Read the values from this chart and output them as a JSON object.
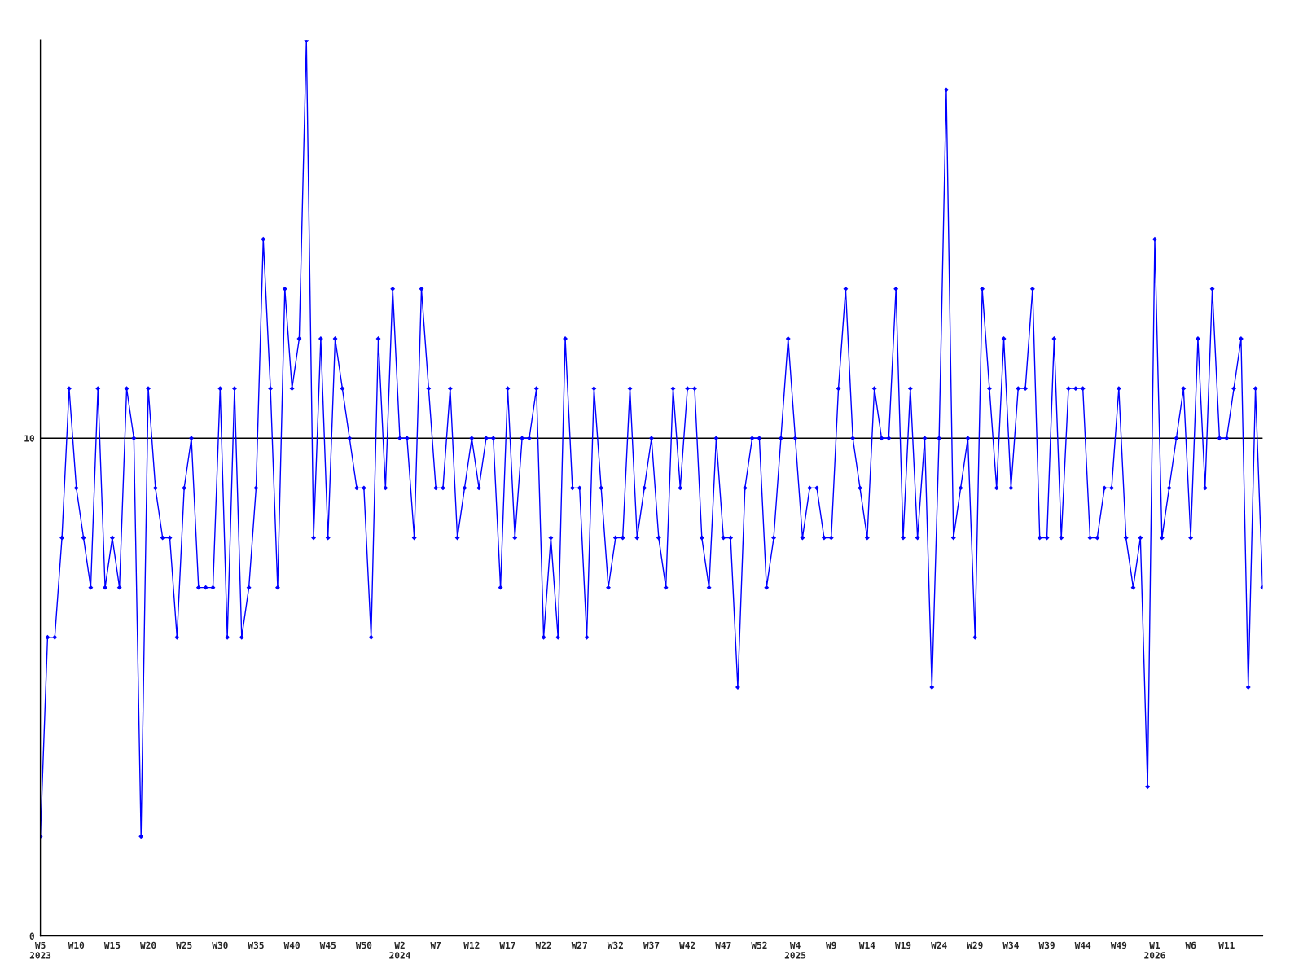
{
  "chart_data": {
    "type": "line",
    "categories": [
      "W5\n2023",
      null,
      null,
      null,
      null,
      "W10",
      null,
      null,
      null,
      null,
      "W15",
      null,
      null,
      null,
      null,
      "W20",
      null,
      null,
      null,
      null,
      "W25",
      null,
      null,
      null,
      null,
      "W30",
      null,
      null,
      null,
      null,
      "W35",
      null,
      null,
      null,
      null,
      "W40",
      null,
      null,
      null,
      null,
      "W45",
      null,
      null,
      null,
      null,
      "W50",
      null,
      null,
      null,
      null,
      "W2\n2024",
      null,
      null,
      null,
      null,
      "W7",
      null,
      null,
      null,
      null,
      "W12",
      null,
      null,
      null,
      null,
      "W17",
      null,
      null,
      null,
      null,
      "W22",
      null,
      null,
      null,
      null,
      "W27",
      null,
      null,
      null,
      null,
      "W32",
      null,
      null,
      null,
      null,
      "W37",
      null,
      null,
      null,
      null,
      "W42",
      null,
      null,
      null,
      null,
      "W47",
      null,
      null,
      null,
      null,
      "W52",
      null,
      null,
      null,
      null,
      "W4\n2025",
      null,
      null,
      null,
      null,
      "W9",
      null,
      null,
      null,
      null,
      "W14",
      null,
      null,
      null,
      null,
      "W19",
      null,
      null,
      null,
      null,
      "W24",
      null,
      null,
      null,
      null,
      "W29",
      null,
      null,
      null,
      null,
      "W34",
      null,
      null,
      null,
      null,
      "W39",
      null,
      null,
      null,
      null,
      "W44",
      null,
      null,
      null,
      null,
      "W49",
      null,
      null,
      null,
      null,
      "W1\n2026",
      null,
      null,
      null,
      null,
      "W6",
      null,
      null,
      null,
      null,
      "W11",
      null,
      null,
      null,
      null,
      null
    ],
    "series": [
      {
        "color": "#0000ff",
        "values": [
          2,
          6,
          6,
          8,
          11,
          9,
          8,
          7,
          11,
          7,
          8,
          7,
          11,
          10,
          2,
          11,
          9,
          8,
          8,
          6,
          9,
          10,
          7,
          7,
          7,
          11,
          6,
          11,
          6,
          7,
          9,
          14,
          11,
          7,
          13,
          11,
          12,
          18,
          8,
          12,
          8,
          12,
          11,
          10,
          9,
          9,
          6,
          12,
          9,
          13,
          10,
          10,
          8,
          13,
          11,
          9,
          9,
          11,
          8,
          9,
          10,
          9,
          10,
          10,
          7,
          11,
          8,
          10,
          10,
          11,
          6,
          8,
          6,
          12,
          9,
          9,
          6,
          11,
          9,
          7,
          8,
          8,
          11,
          8,
          9,
          10,
          8,
          7,
          11,
          9,
          11,
          11,
          8,
          7,
          10,
          8,
          8,
          5,
          9,
          10,
          10,
          7,
          8,
          10,
          12,
          10,
          8,
          9,
          9,
          8,
          8,
          11,
          13,
          10,
          9,
          8,
          11,
          10,
          10,
          13,
          8,
          11,
          8,
          10,
          5,
          10,
          17,
          8,
          9,
          10,
          6,
          13,
          11,
          9,
          12,
          9,
          11,
          11,
          13,
          8,
          8,
          12,
          8,
          11,
          11,
          11,
          8,
          8,
          9,
          9,
          11,
          8,
          7,
          8,
          3,
          14,
          8,
          9,
          10,
          11,
          8,
          12,
          9,
          13,
          10,
          10,
          11,
          12,
          5,
          11,
          7
        ]
      }
    ],
    "ylim": [
      0,
      18
    ],
    "yticks": [
      0,
      10
    ],
    "grid": "y",
    "marker": "diamond",
    "line_style": "solid"
  }
}
